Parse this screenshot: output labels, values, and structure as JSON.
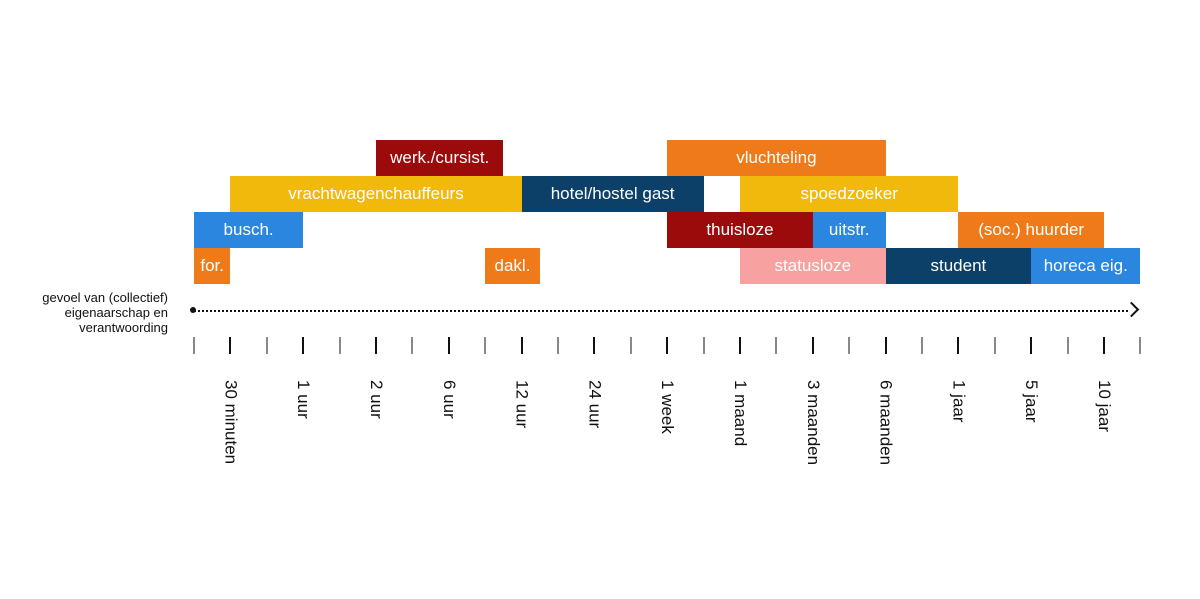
{
  "axis_title": [
    "gevoel van (collectief)",
    "eigenaarschap en",
    "verantwoording"
  ],
  "colors": {
    "orange": "#ef7a1a",
    "darkred": "#9b0b0b",
    "yellow": "#f0b90c",
    "navy": "#0c4068",
    "blue": "#2a86de",
    "pink": "#f7a1a1"
  },
  "ticks": [
    "",
    "30 minuten",
    "",
    "1 uur",
    "",
    "2 uur",
    "",
    "6 uur",
    "",
    "12 uur",
    "",
    "24 uur",
    "",
    "1 week",
    "",
    "1 maand",
    "",
    "3 maanden",
    "",
    "6 maanden",
    "",
    "1 jaar",
    "",
    "5 jaar",
    "",
    "10 jaar",
    ""
  ],
  "bars": [
    {
      "label": "werk./cursist.",
      "row": 0,
      "start": 5,
      "end": 8.5,
      "color": "darkred"
    },
    {
      "label": "vluchteling",
      "row": 0,
      "start": 13,
      "end": 19,
      "color": "orange"
    },
    {
      "label": "vrachtwagenchauffeurs",
      "row": 1,
      "start": 1,
      "end": 9,
      "color": "yellow"
    },
    {
      "label": "hotel/hostel gast",
      "row": 1,
      "start": 9,
      "end": 14,
      "color": "navy"
    },
    {
      "label": "spoedzoeker",
      "row": 1,
      "start": 15,
      "end": 21,
      "color": "yellow"
    },
    {
      "label": "busch.",
      "row": 2,
      "start": 0,
      "end": 3,
      "color": "blue"
    },
    {
      "label": "thuisloze",
      "row": 2,
      "start": 13,
      "end": 17,
      "color": "darkred"
    },
    {
      "label": "uitstr.",
      "row": 2,
      "start": 17,
      "end": 19,
      "color": "blue"
    },
    {
      "label": "(soc.) huurder",
      "row": 2,
      "start": 21,
      "end": 25,
      "color": "orange"
    },
    {
      "label": "for.",
      "row": 3,
      "start": 0,
      "end": 1,
      "color": "orange"
    },
    {
      "label": "dakl.",
      "row": 3,
      "start": 8,
      "end": 9.5,
      "color": "orange"
    },
    {
      "label": "statusloze",
      "row": 3,
      "start": 15,
      "end": 19,
      "color": "pink"
    },
    {
      "label": "student",
      "row": 3,
      "start": 19,
      "end": 23,
      "color": "navy"
    },
    {
      "label": "horeca eig.",
      "row": 3,
      "start": 23,
      "end": 26,
      "color": "blue"
    }
  ]
}
